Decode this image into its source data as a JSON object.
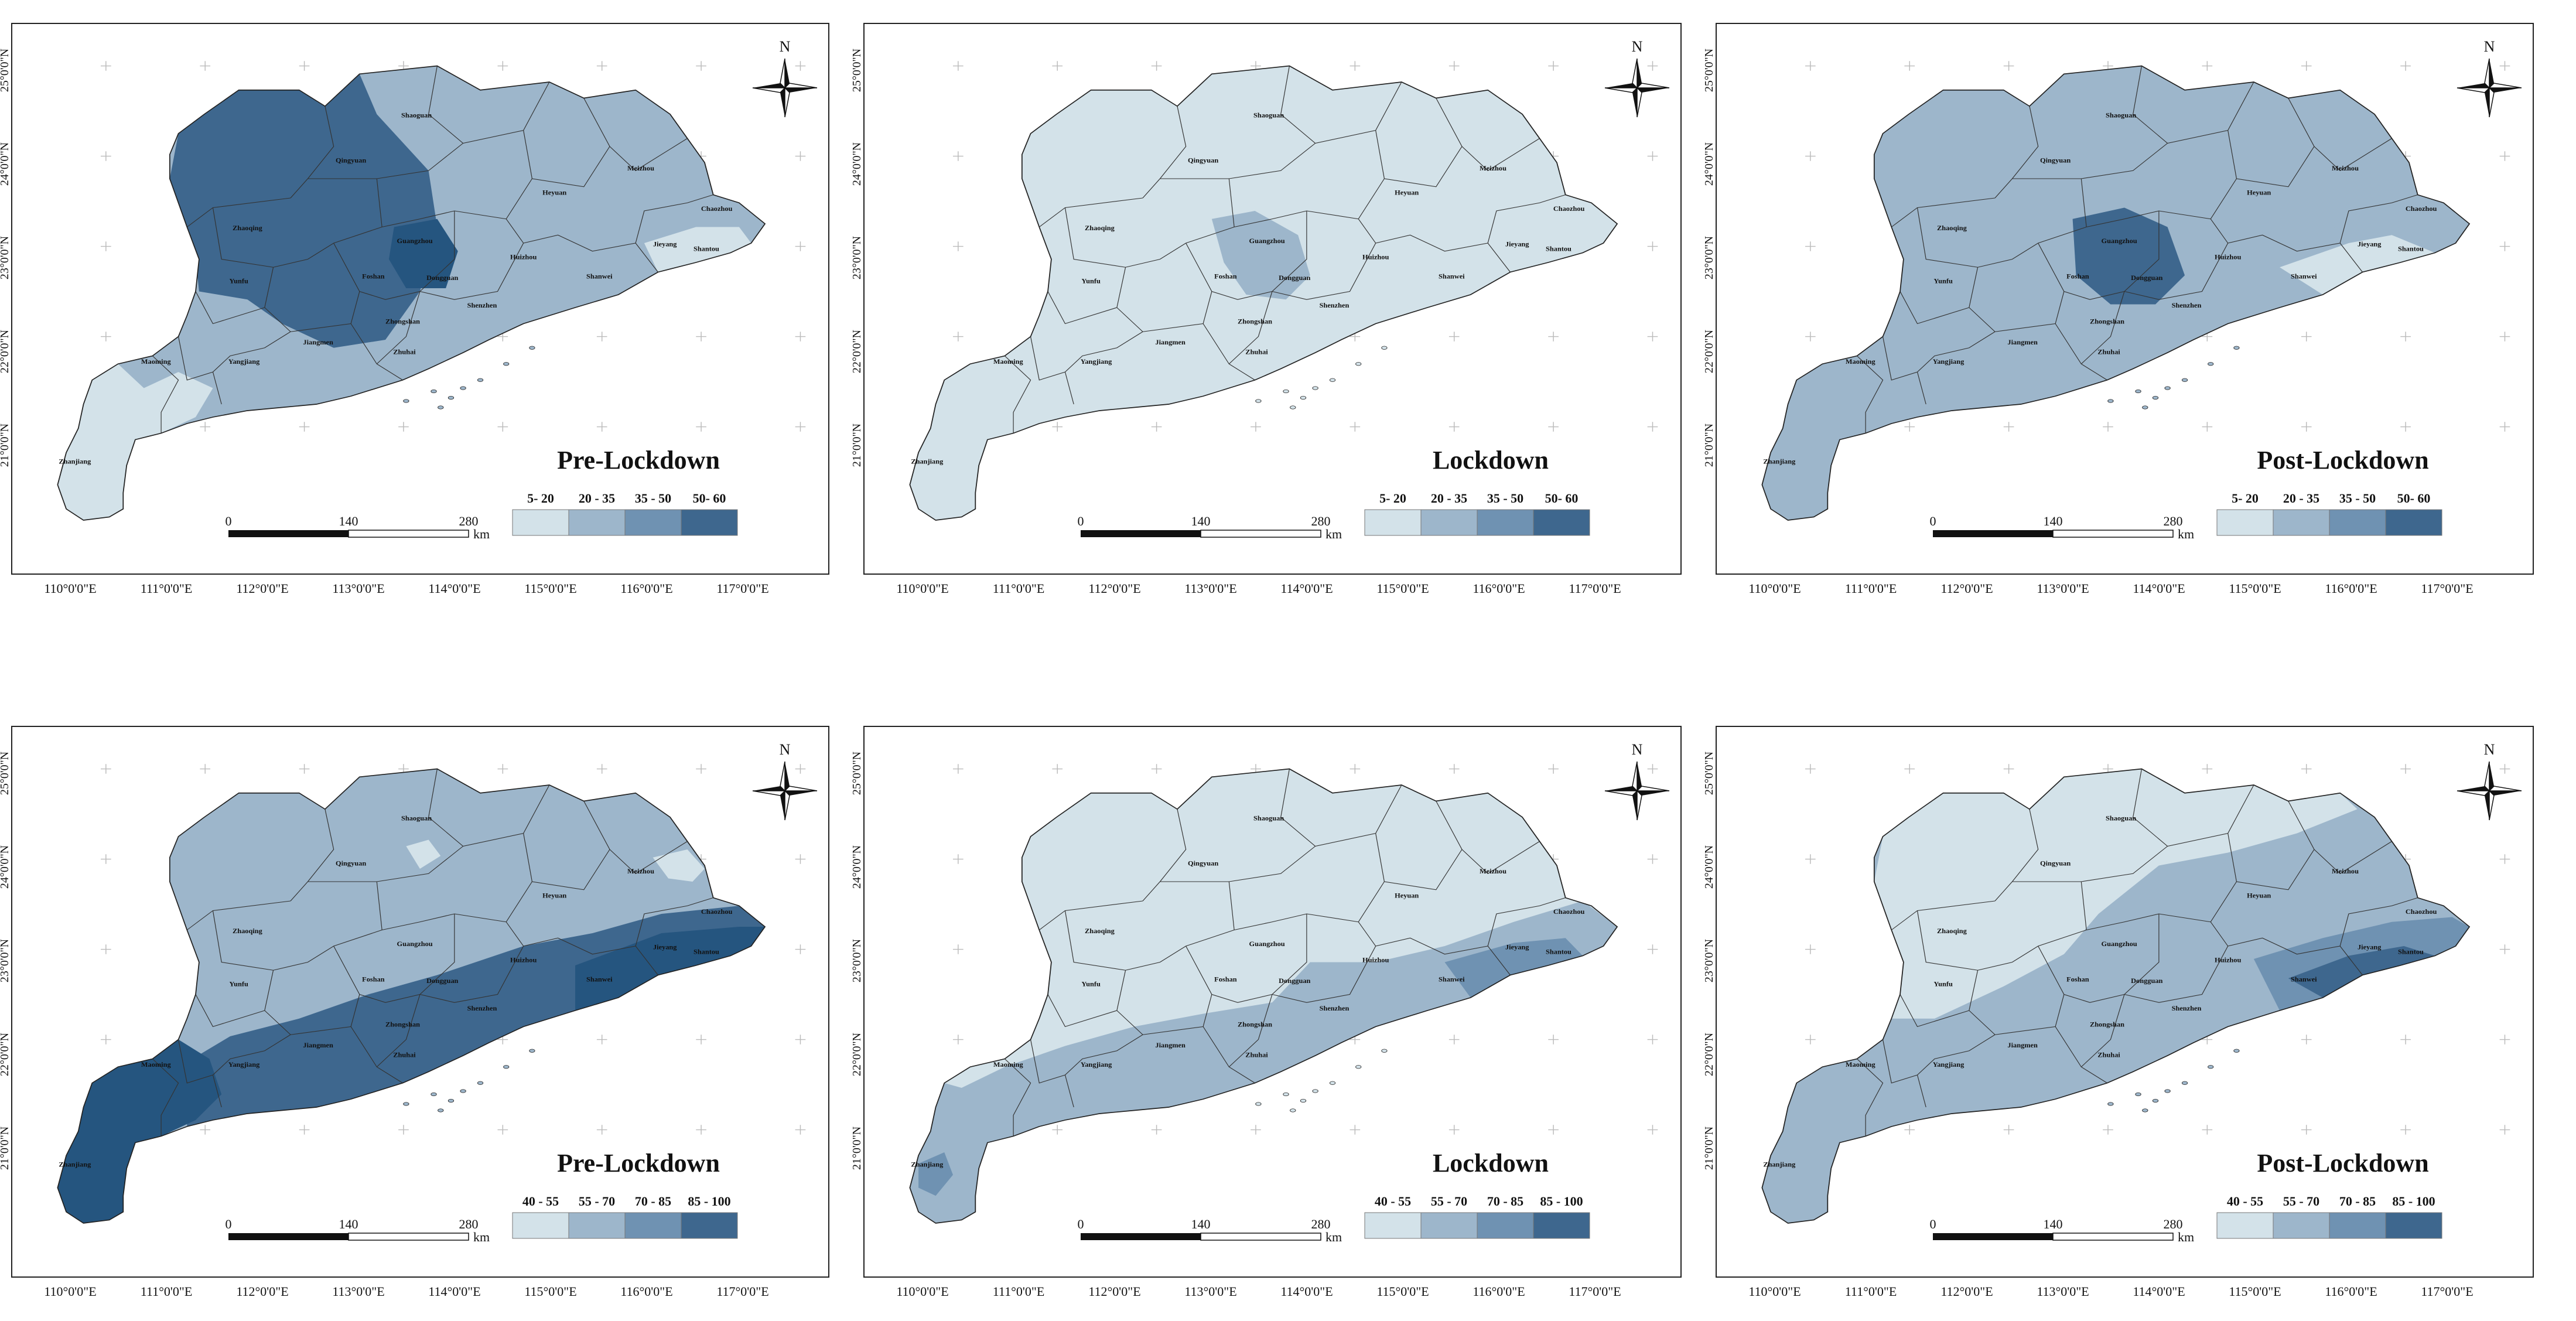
{
  "colors": {
    "c1": "#d3e2e9",
    "c2": "#9db6cb",
    "c3": "#6f92b2",
    "c4": "#3e678e",
    "c5": "#25557f",
    "border": "#222222",
    "grid": "#bbbbbb"
  },
  "common": {
    "north_label": "N",
    "scale_ticks": [
      "0",
      "140",
      "280"
    ],
    "scale_unit": "km",
    "lon_ticks": [
      "110°0'0\"E",
      "111°0'0\"E",
      "112°0'0\"E",
      "113°0'0\"E",
      "114°0'0\"E",
      "115°0'0\"E",
      "116°0'0\"E",
      "117°0'0\"E"
    ],
    "lat_ticks": [
      "25°0'0\"N",
      "24°0'0\"N",
      "23°0'0\"N",
      "22°0'0\"N",
      "21°0'0\"N"
    ],
    "cities": [
      "Shaoguan",
      "Qingyuan",
      "Meizhou",
      "Heyuan",
      "Chaozhou",
      "Zhaoqing",
      "Guangzhou",
      "Huizhou",
      "Jieyang",
      "Shantou",
      "Yunfu",
      "Foshan",
      "Dongguan",
      "Shanwei",
      "Shenzhen",
      "Zhongshan",
      "Maoming",
      "Yangjiang",
      "Jiangmen",
      "Zhuhai",
      "Zhanjiang"
    ]
  },
  "legends": {
    "top": [
      "5- 20",
      "20 - 35",
      "35 - 50",
      "50- 60"
    ],
    "bottom": [
      "40 - 55",
      "55 - 70",
      "70 - 85",
      "85 - 100"
    ]
  },
  "maps": [
    {
      "title": "Pre-Lockdown",
      "legend": "top",
      "base": 2
    },
    {
      "title": "Lockdown",
      "legend": "top",
      "base": 1
    },
    {
      "title": "Post-Lockdown",
      "legend": "top",
      "base": 2
    },
    {
      "title": "Pre-Lockdown",
      "legend": "bottom",
      "base": 2
    },
    {
      "title": "Lockdown",
      "legend": "bottom",
      "base": 1
    },
    {
      "title": "Post-Lockdown",
      "legend": "bottom",
      "base": 2
    }
  ]
}
